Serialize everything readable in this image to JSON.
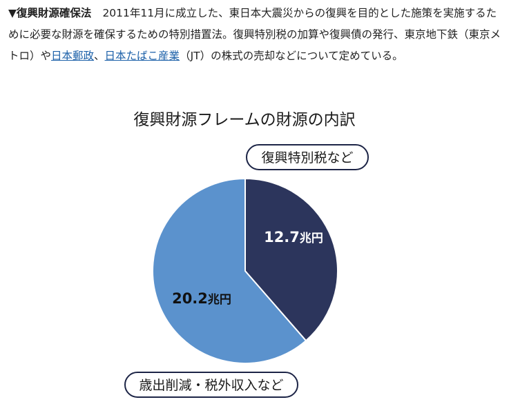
{
  "article": {
    "marker": "▼",
    "term": "復興財源確保法",
    "part1": "2011年11月に成立した、東日本大震災からの復興を目的とした施策を実施するために必要な財源を確保するための特別措置法。復興特別税の加算や復興債の発行、東京地下鉄（東京メトロ）や",
    "link1": "日本郵政",
    "sep": "、",
    "link2": "日本たばこ産業",
    "part2": "（JT）の株式の売却などについて定めている。"
  },
  "chart_data": {
    "type": "pie",
    "title": "復興財源フレームの財源の内訳",
    "unit": "兆円",
    "slices": [
      {
        "label": "復興特別税など",
        "value": 12.7,
        "value_label": "12.7",
        "color": "#2c355c",
        "text_color": "#ffffff"
      },
      {
        "label": "歳出削減・税外収入など",
        "value": 20.2,
        "value_label": "20.2",
        "color": "#5b92cd",
        "text_color": "#111111"
      }
    ]
  }
}
